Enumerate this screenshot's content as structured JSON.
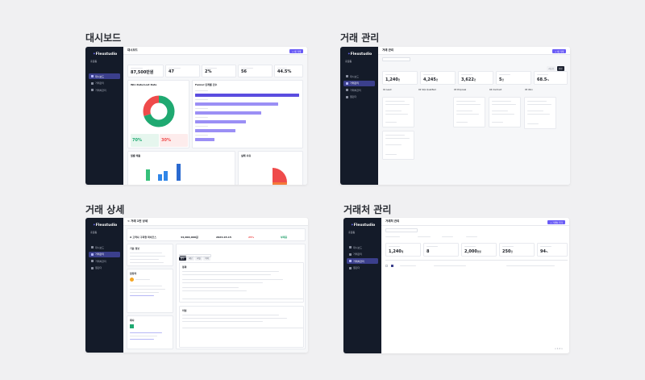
{
  "tiles": {
    "dashboard": {
      "title": "대시보드",
      "page_title": "대시보드",
      "primary_button": "+ 새 거래",
      "period_tabs": [
        "주",
        "이번 달",
        "분기"
      ],
      "kpis": [
        {
          "label": "",
          "value": "87,500만원",
          "delta": ""
        },
        {
          "label": "",
          "value": "47",
          "delta": ""
        },
        {
          "label": "",
          "value": "2%",
          "delta": ""
        },
        {
          "label": "",
          "value": "56",
          "delta": ""
        },
        {
          "label": "",
          "value": "44.5%",
          "delta": ""
        }
      ],
      "win_rate_card": {
        "title": "Win Rate/Lost Rate",
        "win_pct": 70,
        "lost_pct": 30,
        "win_label": "70%",
        "lost_label": "30%",
        "colors": {
          "win": "#1fa971",
          "lost": "#ef4b4b"
        }
      },
      "funnel_card": {
        "title": "Funnel 단계별 건수",
        "bars": [
          0.98,
          0.78,
          0.62,
          0.48,
          0.38,
          0.18
        ]
      },
      "bottom_left_title": "월별 매출",
      "bottom_right_title": "실패 사유",
      "accent": "#6a5cf6"
    },
    "deals": {
      "title": "거래 관리",
      "page_title": "거래 관리",
      "primary_button": "+ 새 거래",
      "view_tabs": [
        "리스트",
        "칸반"
      ],
      "kpis": [
        {
          "value": "1,240",
          "unit": "건"
        },
        {
          "value": "4,245",
          "unit": "건"
        },
        {
          "value": "3,622",
          "unit": "건"
        },
        {
          "value": "5",
          "unit": "건"
        },
        {
          "value": "68.5",
          "unit": "%"
        }
      ],
      "columns": [
        "01 Lead",
        "02 SQL Qualified",
        "03 Proposal",
        "04 Contract",
        "05 Won"
      ]
    },
    "deal_detail": {
      "title": "거래 상세",
      "breadcrumb": "< 거래 1번 상세",
      "deal_name": "A 고객사 구축형 파이프스",
      "amount": "44,000,000원",
      "date": "2024.03.15",
      "probability": "25%",
      "status": "부재중",
      "tabs": [
        "활동",
        "메모",
        "파일",
        "이력"
      ],
      "sections": [
        "기본 정보",
        "담당자",
        "회사"
      ],
      "activity_titles": [
        "통화",
        "미팅"
      ]
    },
    "accounts": {
      "title": "거래처 관리",
      "page_title": "거래처 관리",
      "primary_button": "+ 거래처 추가",
      "kpis": [
        {
          "value": "1,240",
          "unit": "개"
        },
        {
          "value": "8",
          "unit": ""
        },
        {
          "value": "2,000",
          "unit": "만원"
        },
        {
          "value": "250",
          "unit": "건"
        },
        {
          "value": "94",
          "unit": "%"
        }
      ],
      "table_row": "",
      "pagination": "< 1 2 >"
    }
  },
  "sidebar": {
    "logo_text": "Flexstudio",
    "user_name": "홍길동",
    "user_role": "",
    "items": [
      "대시보드",
      "거래관리",
      "거래처관리",
      "캘린더"
    ]
  },
  "colors": {
    "page_bg": "#f0f0f2",
    "sidebar_bg": "#141b29",
    "accent": "#6a5cf6",
    "positive": "#22a06b",
    "negative": "#ef4b4b"
  }
}
